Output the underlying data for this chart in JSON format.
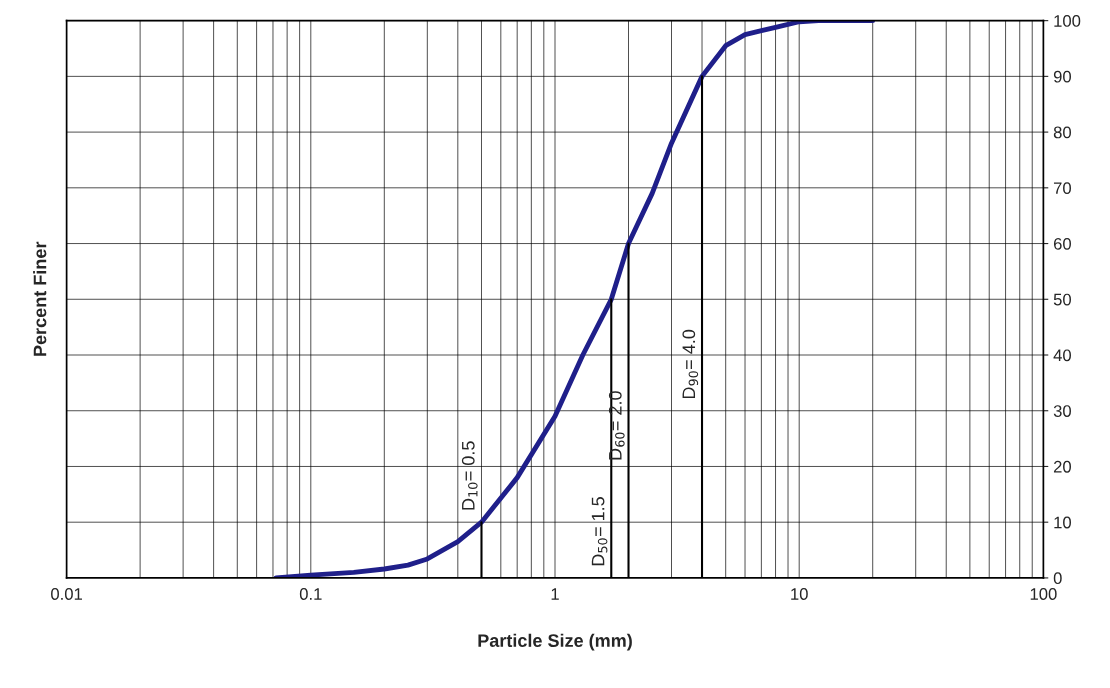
{
  "chart_data": {
    "type": "line",
    "xlabel": "Particle Size (mm)",
    "ylabel": "Percent Finer",
    "log": "x",
    "grid": true,
    "marker": "none",
    "line_style": "solid",
    "legend": false,
    "xlim": [
      0.01,
      100
    ],
    "xticks": [
      0.01,
      0.1,
      1,
      10,
      100
    ],
    "ylim": [
      0,
      100
    ],
    "yticks": [
      0,
      10,
      20,
      30,
      40,
      50,
      60,
      70,
      80,
      90,
      100
    ],
    "series": [
      {
        "color": "#1f1f8a",
        "x": [
          0.072,
          0.1,
          0.15,
          0.2,
          0.25,
          0.3,
          0.4,
          0.5,
          0.7,
          1.0,
          1.3,
          1.7,
          2.0,
          2.5,
          3.0,
          4.0,
          5.0,
          6.0,
          8.0,
          10,
          12,
          20
        ],
        "values": [
          0,
          0.5,
          1,
          1.6,
          2.3,
          3.4,
          6.5,
          10,
          18,
          29,
          40,
          50,
          60,
          69,
          78,
          90,
          95.5,
          97.5,
          98.8,
          99.8,
          100,
          100
        ]
      },
      {
        "color": "#000000",
        "x": [
          0.5,
          0.5
        ],
        "values": [
          0,
          10
        ]
      },
      {
        "color": "#000000",
        "x": [
          1.7,
          1.7
        ],
        "values": [
          0,
          50
        ]
      },
      {
        "color": "#000000",
        "x": [
          2.0,
          2.0
        ],
        "values": [
          0,
          60
        ]
      },
      {
        "color": "#000000",
        "x": [
          4.0,
          4.0
        ],
        "values": [
          0,
          90
        ]
      }
    ],
    "annotations": [
      "D$_{10}$= 0.5",
      "D$_{50}$= 1.5",
      "D$_{60}$= 2.0",
      "D$_{90}$= 4.0"
    ]
  }
}
